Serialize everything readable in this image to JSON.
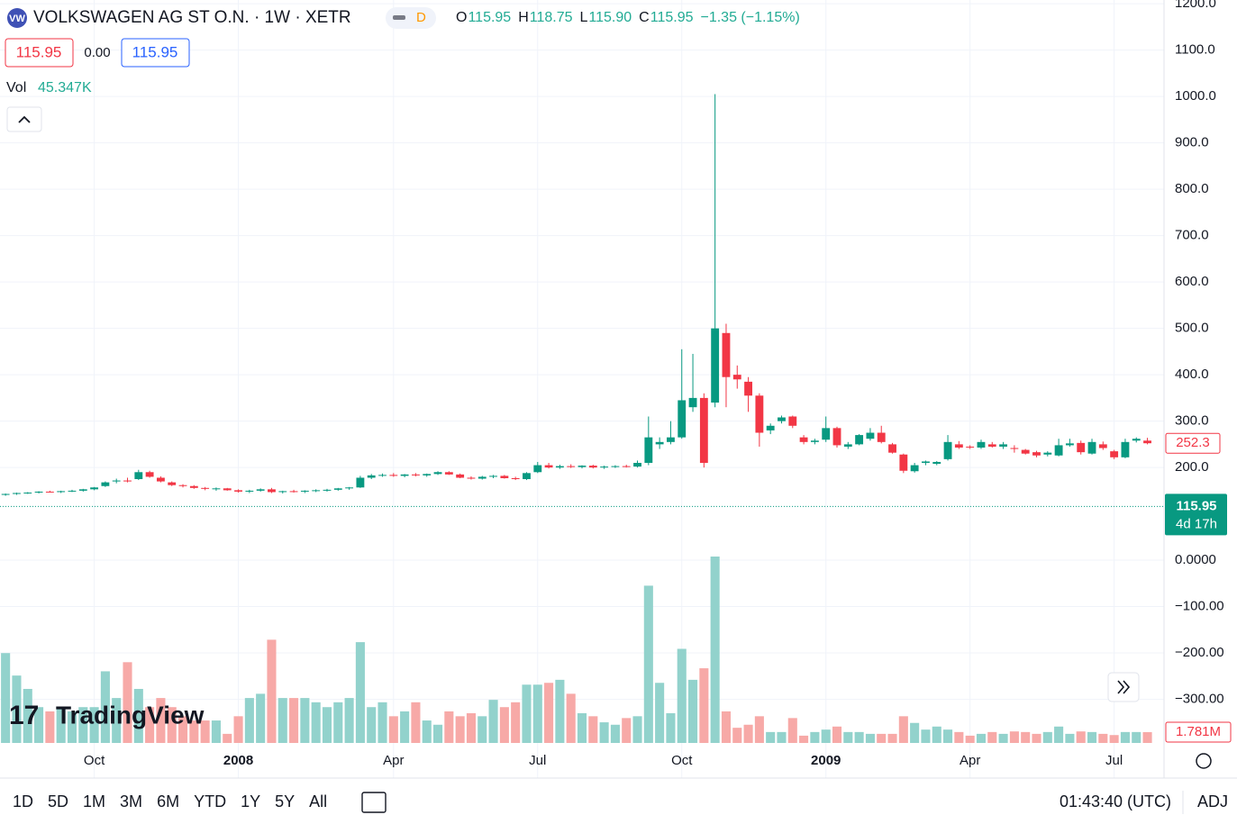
{
  "header": {
    "title": "VOLKSWAGEN AG ST O.N. · 1W · XETR",
    "badge": "D",
    "ohlc": [
      {
        "key": "O",
        "value": "115.95"
      },
      {
        "key": "H",
        "value": "118.75"
      },
      {
        "key": "L",
        "value": "115.90"
      },
      {
        "key": "C",
        "value": "115.95"
      }
    ],
    "change": "−1.35 (−1.15%)",
    "bid": "115.95",
    "spread": "0.00",
    "ask": "115.95",
    "vol_label": "Vol",
    "vol_value": "45.347K"
  },
  "chart_data": {
    "type": "candlestick",
    "ohlc": [
      [
        141,
        144,
        139,
        143
      ],
      [
        143,
        146,
        141,
        145
      ],
      [
        145,
        147,
        143,
        146
      ],
      [
        146,
        149,
        144,
        148
      ],
      [
        148,
        150,
        146,
        147
      ],
      [
        147,
        150,
        145,
        149
      ],
      [
        149,
        152,
        147,
        150
      ],
      [
        150,
        154,
        148,
        153
      ],
      [
        153,
        158,
        151,
        157
      ],
      [
        160,
        170,
        158,
        168
      ],
      [
        170,
        176,
        166,
        172
      ],
      [
        172,
        178,
        168,
        170
      ],
      [
        175,
        195,
        173,
        190
      ],
      [
        190,
        193,
        178,
        180
      ],
      [
        178,
        181,
        168,
        170
      ],
      [
        168,
        170,
        160,
        162
      ],
      [
        162,
        164,
        157,
        160
      ],
      [
        160,
        162,
        154,
        156
      ],
      [
        156,
        158,
        151,
        154
      ],
      [
        154,
        157,
        150,
        155
      ],
      [
        155,
        156,
        150,
        151
      ],
      [
        151,
        153,
        146,
        148
      ],
      [
        148,
        152,
        145,
        150
      ],
      [
        150,
        155,
        148,
        153
      ],
      [
        153,
        156,
        145,
        147
      ],
      [
        147,
        150,
        144,
        149
      ],
      [
        149,
        152,
        146,
        148
      ],
      [
        148,
        151,
        145,
        150
      ],
      [
        150,
        153,
        147,
        151
      ],
      [
        151,
        154,
        148,
        152
      ],
      [
        152,
        156,
        150,
        155
      ],
      [
        155,
        158,
        152,
        157
      ],
      [
        157,
        182,
        156,
        178
      ],
      [
        178,
        186,
        175,
        183
      ],
      [
        183,
        187,
        180,
        184
      ],
      [
        184,
        188,
        180,
        182
      ],
      [
        182,
        186,
        179,
        185
      ],
      [
        185,
        188,
        181,
        183
      ],
      [
        183,
        187,
        180,
        186
      ],
      [
        186,
        192,
        184,
        190
      ],
      [
        190,
        192,
        184,
        185
      ],
      [
        185,
        187,
        177,
        178
      ],
      [
        178,
        181,
        174,
        176
      ],
      [
        176,
        182,
        174,
        180
      ],
      [
        180,
        184,
        177,
        182
      ],
      [
        182,
        184,
        176,
        177
      ],
      [
        177,
        180,
        173,
        175
      ],
      [
        175,
        190,
        173,
        188
      ],
      [
        190,
        212,
        188,
        205
      ],
      [
        205,
        210,
        198,
        200
      ],
      [
        200,
        206,
        197,
        203
      ],
      [
        203,
        207,
        199,
        201
      ],
      [
        201,
        205,
        198,
        204
      ],
      [
        204,
        206,
        198,
        200
      ],
      [
        200,
        204,
        197,
        202
      ],
      [
        202,
        205,
        199,
        203
      ],
      [
        203,
        206,
        200,
        202
      ],
      [
        202,
        215,
        200,
        210
      ],
      [
        210,
        310,
        205,
        265
      ],
      [
        250,
        265,
        240,
        255
      ],
      [
        255,
        300,
        250,
        265
      ],
      [
        265,
        455,
        262,
        345
      ],
      [
        330,
        445,
        320,
        350
      ],
      [
        350,
        360,
        200,
        210
      ],
      [
        340,
        1005,
        330,
        500
      ],
      [
        490,
        510,
        330,
        395
      ],
      [
        400,
        420,
        370,
        390
      ],
      [
        385,
        395,
        320,
        355
      ],
      [
        355,
        360,
        245,
        275
      ],
      [
        280,
        295,
        272,
        290
      ],
      [
        300,
        312,
        295,
        308
      ],
      [
        310,
        312,
        285,
        290
      ],
      [
        265,
        270,
        250,
        255
      ],
      [
        255,
        262,
        250,
        258
      ],
      [
        260,
        310,
        255,
        285
      ],
      [
        285,
        288,
        243,
        248
      ],
      [
        245,
        255,
        240,
        250
      ],
      [
        250,
        272,
        248,
        270
      ],
      [
        262,
        285,
        258,
        275
      ],
      [
        275,
        290,
        252,
        255
      ],
      [
        250,
        253,
        230,
        232
      ],
      [
        228,
        230,
        188,
        193
      ],
      [
        192,
        210,
        189,
        205
      ],
      [
        210,
        215,
        205,
        213
      ],
      [
        208,
        214,
        205,
        212
      ],
      [
        218,
        270,
        215,
        255
      ],
      [
        250,
        257,
        240,
        243
      ],
      [
        245,
        248,
        240,
        244
      ],
      [
        243,
        260,
        240,
        255
      ],
      [
        250,
        255,
        243,
        245
      ],
      [
        245,
        255,
        240,
        250
      ],
      [
        242,
        248,
        232,
        240
      ],
      [
        238,
        240,
        228,
        230
      ],
      [
        233,
        236,
        222,
        226
      ],
      [
        228,
        235,
        224,
        232
      ],
      [
        226,
        262,
        224,
        248
      ],
      [
        248,
        262,
        245,
        252
      ],
      [
        253,
        258,
        228,
        233
      ],
      [
        230,
        262,
        228,
        255
      ],
      [
        250,
        256,
        238,
        242
      ],
      [
        235,
        238,
        218,
        222
      ],
      [
        222,
        262,
        220,
        255
      ],
      [
        258,
        265,
        254,
        262
      ],
      [
        258,
        264,
        250,
        252.3
      ]
    ],
    "volume": [
      14.8,
      11.1,
      8.9,
      5.9,
      5.2,
      5.9,
      5.2,
      5.9,
      5.9,
      11.8,
      7.4,
      13.3,
      8.9,
      5.9,
      7.4,
      5.9,
      4.4,
      3.7,
      3.7,
      3.7,
      1.5,
      4.4,
      7.4,
      8.1,
      17.0,
      7.4,
      7.4,
      7.4,
      6.7,
      5.9,
      6.7,
      7.4,
      16.6,
      5.9,
      6.7,
      4.4,
      5.2,
      6.7,
      3.7,
      3.0,
      5.2,
      4.4,
      4.9,
      4.4,
      7.1,
      5.9,
      6.7,
      9.6,
      9.6,
      9.9,
      10.4,
      8.1,
      4.9,
      4.4,
      3.4,
      3.0,
      4.1,
      4.4,
      25.9,
      9.9,
      4.9,
      15.5,
      10.4,
      12.3,
      30.7,
      5.2,
      2.5,
      3.0,
      4.4,
      1.8,
      1.8,
      4.1,
      1.2,
      1.8,
      2.2,
      2.7,
      1.8,
      1.8,
      1.5,
      1.5,
      1.5,
      4.4,
      3.3,
      2.2,
      2.7,
      2.2,
      1.8,
      1.2,
      1.5,
      1.8,
      1.5,
      1.9,
      1.8,
      1.5,
      1.8,
      2.7,
      1.5,
      1.9,
      1.8,
      1.5,
      1.3,
      1.8,
      1.8,
      1.781
    ],
    "last_volume_label": "1.781M",
    "last_close_label": "252.3",
    "current_price": 115.95,
    "countdown": "4d 17h",
    "up_color": "#089981",
    "down_color": "#f23645",
    "vol_up_color": "#92d2cc",
    "vol_down_color": "#f7a9a7",
    "xlim": [
      -0.5,
      104.5
    ],
    "xticks": [
      {
        "value": 8,
        "label": "Oct"
      },
      {
        "value": 21,
        "label": "2008"
      },
      {
        "value": 35,
        "label": "Apr"
      },
      {
        "value": 48,
        "label": "Jul"
      },
      {
        "value": 61,
        "label": "Oct"
      },
      {
        "value": 74,
        "label": "2009"
      },
      {
        "value": 87,
        "label": "Apr"
      },
      {
        "value": 100,
        "label": "Jul"
      }
    ],
    "ylim": [
      43,
      1208
    ],
    "yticks": [
      {
        "value": 200,
        "label": "200.0"
      },
      {
        "value": 300,
        "label": "300.0"
      },
      {
        "value": 400,
        "label": "400.0"
      },
      {
        "value": 500,
        "label": "500.0"
      },
      {
        "value": 600,
        "label": "600.0"
      },
      {
        "value": 700,
        "label": "700.0"
      },
      {
        "value": 800,
        "label": "800.0"
      },
      {
        "value": 900,
        "label": "900.0"
      },
      {
        "value": 1000,
        "label": "1000.0"
      },
      {
        "value": 1100,
        "label": "1100.0"
      },
      {
        "value": 1200,
        "label": "1200.0"
      }
    ],
    "vol_ylim": [
      0,
      30.7
    ],
    "y2lim": [
      -394,
      0
    ],
    "y2ticks": [
      {
        "value": 0,
        "label": "0.0000"
      },
      {
        "value": -100,
        "label": "−100.00"
      },
      {
        "value": -200,
        "label": "−200.00"
      },
      {
        "value": -300,
        "label": "−300.00"
      }
    ],
    "grid": true
  },
  "brand": "TradingView",
  "toolbar": {
    "ranges": [
      "1D",
      "5D",
      "1M",
      "3M",
      "6M",
      "YTD",
      "1Y",
      "5Y",
      "All"
    ],
    "clock": "01:43:40 (UTC)",
    "adj": "ADJ"
  }
}
